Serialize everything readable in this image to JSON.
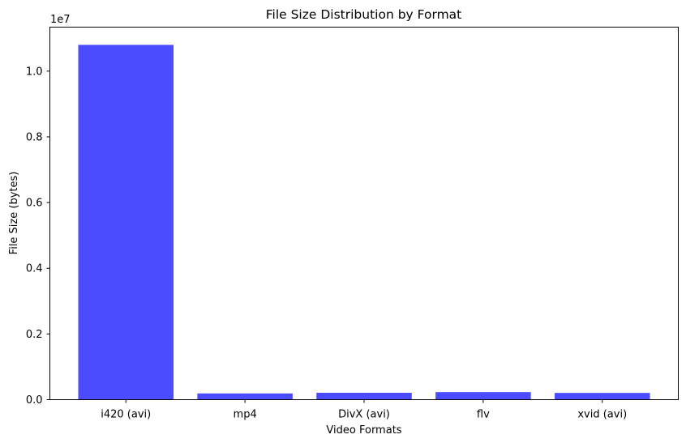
{
  "chart_data": {
    "type": "bar",
    "title": "File Size Distribution by Format",
    "xlabel": "Video Formats",
    "ylabel": "File Size (bytes)",
    "y_offset_label": "1e7",
    "categories": [
      "i420 (avi)",
      "mp4",
      "DivX (avi)",
      "flv",
      "xvid (avi)"
    ],
    "values": [
      10800000,
      190000,
      210000,
      230000,
      205000
    ],
    "ylim": [
      0,
      11340000
    ],
    "yticks": [
      0,
      2000000,
      4000000,
      6000000,
      8000000,
      10000000
    ],
    "ytick_labels": [
      "0.0",
      "0.2",
      "0.4",
      "0.6",
      "0.8",
      "1.0"
    ],
    "bar_color": "#4b4bff",
    "grid": false
  }
}
